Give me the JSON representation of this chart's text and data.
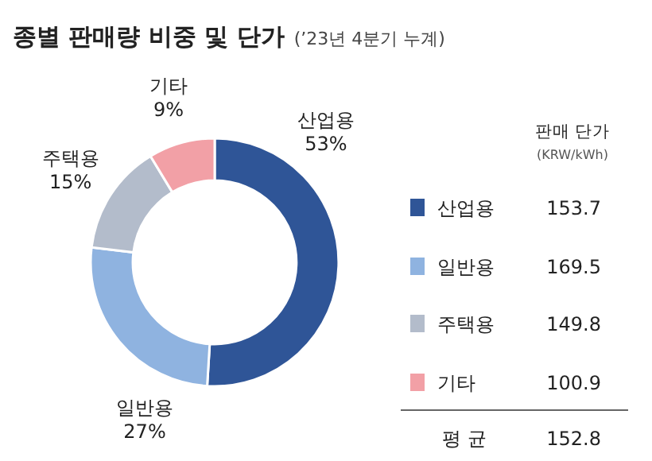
{
  "chart_data": [
    {
      "type": "donut",
      "title": "종별 판매량 비중 및 단가",
      "subtitle": "(’23년 4분기 누계)",
      "categories": [
        "산업용",
        "일반용",
        "주택용",
        "기타"
      ],
      "values": [
        53,
        27,
        15,
        9
      ],
      "value_labels": [
        "53%",
        "27%",
        "15%",
        "9%"
      ],
      "colors": [
        "#2f5597",
        "#8fb3e0",
        "#b3bccb",
        "#f2a0a6"
      ],
      "legend": "right"
    },
    {
      "type": "other",
      "title": "판매 단가",
      "subtitle": "(KRW/kWh)",
      "annotations": [
        "153.7",
        "169.5",
        "149.8",
        "100.9",
        "평 균",
        "152.8"
      ]
    }
  ]
}
